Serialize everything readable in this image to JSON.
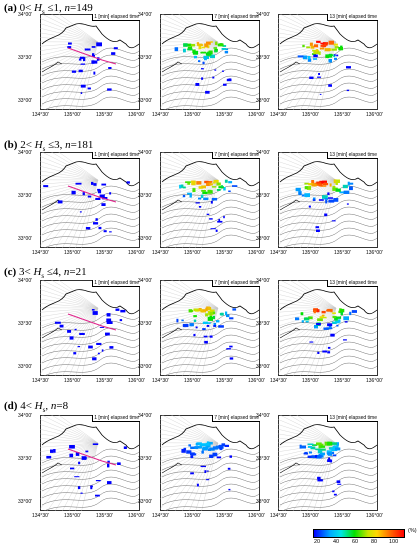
{
  "rows": [
    {
      "tag": "(a)",
      "pre": "0<",
      "var": "H",
      "sub": "s",
      "post": "≤1,",
      "n_var": "n",
      "n_val": "=149"
    },
    {
      "tag": "(b)",
      "pre": "2<",
      "var": "H",
      "sub": "s",
      "post": "≤3,",
      "n_var": "n",
      "n_val": "=181"
    },
    {
      "tag": "(c)",
      "pre": "3<",
      "var": "H",
      "sub": "s",
      "post": "≤4,",
      "n_var": "n",
      "n_val": "=21"
    },
    {
      "tag": "(d)",
      "pre": "4<",
      "var": "H",
      "sub": "s",
      "post": ",",
      "n_var": "n",
      "n_val": "=8"
    }
  ],
  "panel_titles": [
    "1 [min] elapsed time",
    "7 [min] elapsed time",
    "13 [min] elapsed time"
  ],
  "lat_ticks": [
    "34°00'",
    "33°30'",
    "33°00'"
  ],
  "lon_ticks": [
    "134°30'",
    "135°00'",
    "135°30'",
    "136°00'"
  ],
  "colorbar": {
    "labels": [
      "20",
      "40",
      "60",
      "80",
      "100"
    ],
    "unit": "(%)"
  },
  "colors": {
    "low": "#0000ff",
    "mid": "#00e000",
    "high": "#ff0000",
    "track": "#e0218a"
  }
}
